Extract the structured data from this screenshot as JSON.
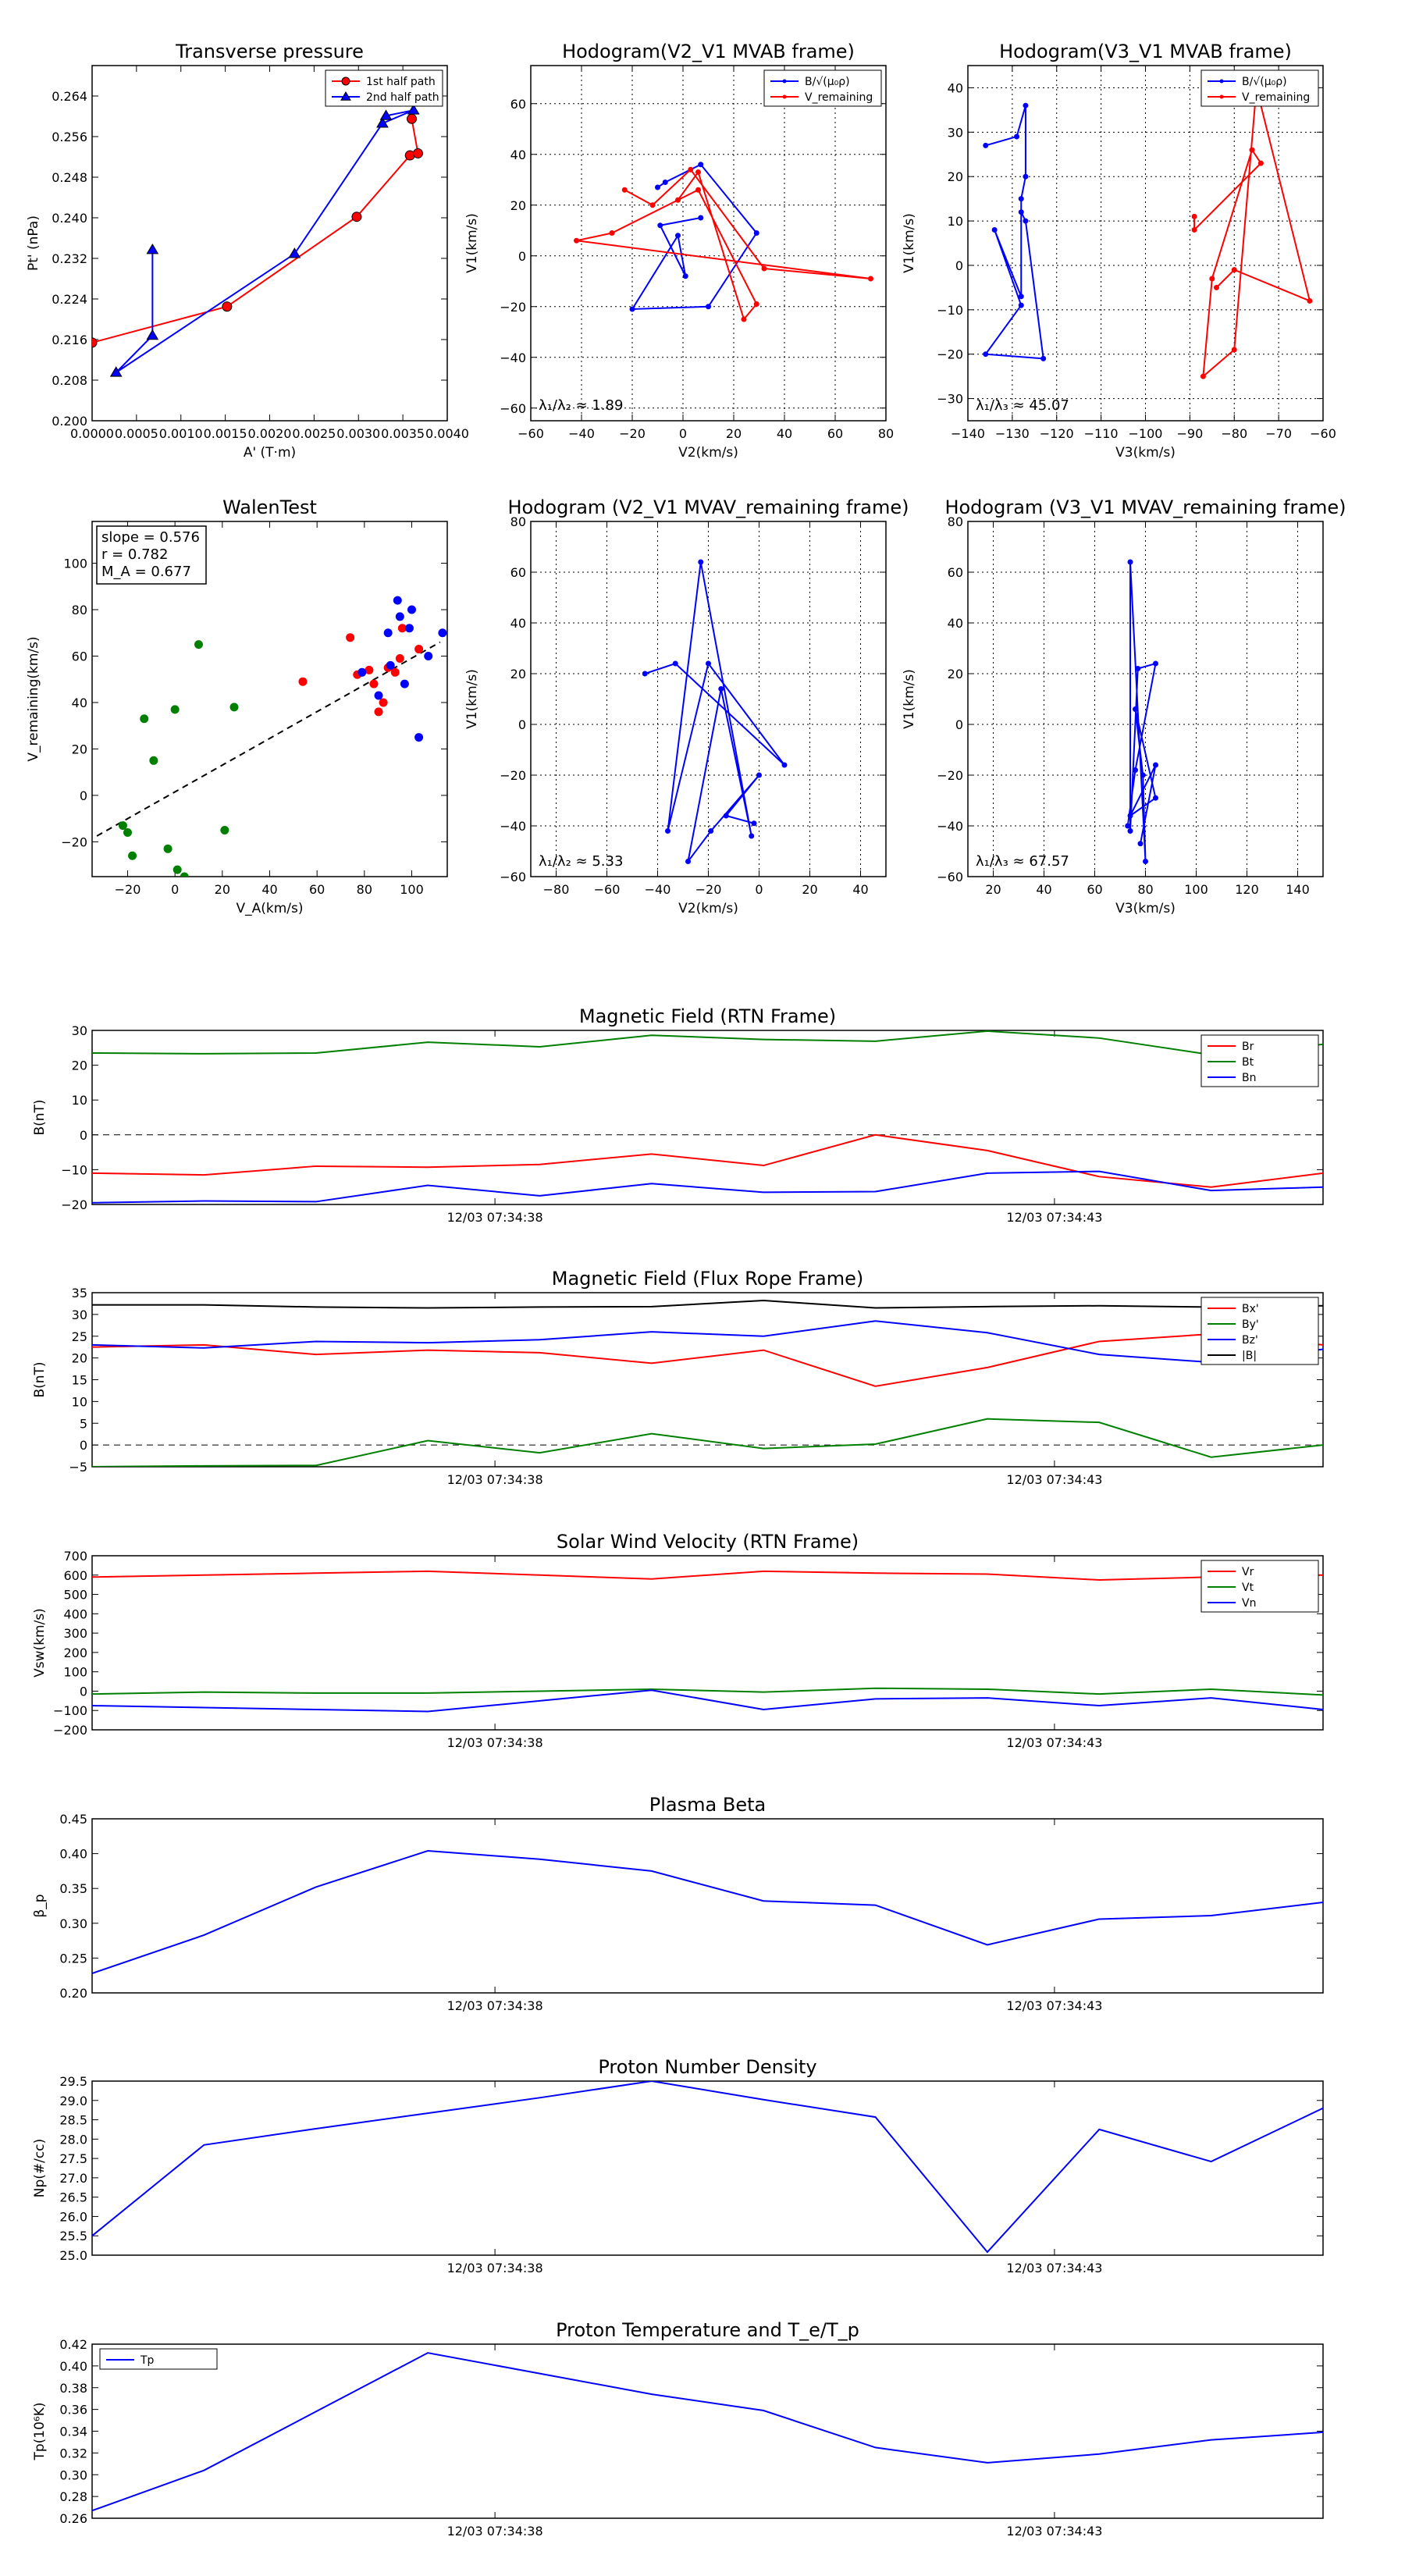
{
  "chart_data": [
    {
      "id": "transverse-pressure",
      "type": "line",
      "title": "Transverse pressure",
      "xlabel": "A' (T·m)",
      "ylabel": "Pt' (nPa)",
      "xlim": [
        0.0,
        0.004
      ],
      "ylim": [
        0.2,
        0.27
      ],
      "xticks": [
        0.0,
        0.0005,
        0.001,
        0.0015,
        0.002,
        0.0025,
        0.003,
        0.0035,
        0.004
      ],
      "xtick_labels": [
        "0.0000",
        "0.0005",
        "0.0010",
        "0.0015",
        "0.0020",
        "0.0025",
        "0.0030",
        "0.0035",
        "0.0040"
      ],
      "yticks": [
        0.2,
        0.208,
        0.216,
        0.224,
        0.232,
        0.24,
        0.248,
        0.256,
        0.264
      ],
      "ytick_labels": [
        "0.200",
        "0.208",
        "0.216",
        "0.224",
        "0.232",
        "0.240",
        "0.248",
        "0.256",
        "0.264"
      ],
      "grid": false,
      "legend": "top-right",
      "series": [
        {
          "name": "1st half path",
          "color": "#ff0000",
          "marker": "circle",
          "x": [
            0.0,
            0.00152,
            0.00298,
            0.00358,
            0.00367,
            0.0036
          ],
          "y": [
            0.2154,
            0.2225,
            0.2402,
            0.2523,
            0.2527,
            0.2595
          ]
        },
        {
          "name": "2nd half path",
          "color": "#0000ff",
          "marker": "triangle",
          "x": [
            0.00068,
            0.00068,
            0.00027,
            0.00228,
            0.00327,
            0.00362,
            0.00331
          ],
          "y": [
            0.2337,
            0.2168,
            0.2095,
            0.2329,
            0.2586,
            0.2612,
            0.2601
          ]
        }
      ]
    },
    {
      "id": "hodogram-v2-v1-mvab",
      "type": "line",
      "title": "Hodogram(V2_V1 MVAB frame)",
      "xlabel": "V2(km/s)",
      "ylabel": "V1(km/s)",
      "xlim": [
        -60,
        80
      ],
      "ylim": [
        -65,
        75
      ],
      "xticks": [
        -60,
        -40,
        -20,
        0,
        20,
        40,
        60,
        80
      ],
      "yticks": [
        -60,
        -40,
        -20,
        0,
        20,
        40,
        60
      ],
      "grid": true,
      "legend": "top-right",
      "annotation": "λ₁/λ₂ ≈ 1.89",
      "series": [
        {
          "name": "B/√(μ₀ρ)",
          "color": "#0000ff",
          "x": [
            -10,
            -7,
            7,
            29,
            10,
            -20,
            -2,
            1,
            -9,
            7
          ],
          "y": [
            27,
            29,
            36,
            9,
            -20,
            -21,
            8,
            -8,
            12,
            15
          ]
        },
        {
          "name": "V_remaining",
          "color": "#ff0000",
          "x": [
            -23,
            -12,
            3,
            32,
            74,
            -42,
            -28,
            6,
            29,
            24,
            6,
            -2
          ],
          "y": [
            26,
            20,
            34,
            -5,
            -9,
            6,
            9,
            26,
            -19,
            -25,
            33,
            22
          ]
        }
      ]
    },
    {
      "id": "hodogram-v3-v1-mvab",
      "type": "line",
      "title": "Hodogram(V3_V1 MVAB frame)",
      "xlabel": "V3(km/s)",
      "ylabel": "V1(km/s)",
      "xlim": [
        -140,
        -60
      ],
      "ylim": [
        -35,
        45
      ],
      "xticks": [
        -140,
        -130,
        -120,
        -110,
        -100,
        -90,
        -80,
        -70,
        -60
      ],
      "yticks": [
        -30,
        -20,
        -10,
        0,
        10,
        20,
        30,
        40
      ],
      "grid": true,
      "legend": "top-right",
      "annotation": "λ₁/λ₃ ≈ 45.07",
      "series": [
        {
          "name": "B/√(μ₀ρ)",
          "color": "#0000ff",
          "x": [
            -136,
            -129,
            -127,
            -127,
            -128,
            -128,
            -134,
            -128,
            -136,
            -123,
            -127,
            -128
          ],
          "y": [
            27,
            29,
            36,
            20,
            15,
            -7,
            8,
            -9,
            -20,
            -21,
            10,
            12
          ]
        },
        {
          "name": "V_remaining",
          "color": "#ff0000",
          "x": [
            -89,
            -89,
            -74,
            -76,
            -85,
            -87,
            -80,
            -75,
            -63,
            -80,
            -84
          ],
          "y": [
            11,
            8,
            23,
            26,
            -3,
            -25,
            -19,
            40,
            -8,
            -1,
            -5
          ]
        }
      ]
    },
    {
      "id": "walen-test",
      "type": "scatter",
      "title": "WalenTest",
      "xlabel": "V_A(km/s)",
      "ylabel": "V_remaining(km/s)",
      "xlim": [
        -35,
        115
      ],
      "ylim": [
        -35,
        118
      ],
      "xticks": [
        -20,
        0,
        20,
        40,
        60,
        80,
        100
      ],
      "yticks": [
        -20,
        0,
        20,
        40,
        60,
        80,
        100
      ],
      "grid": false,
      "annotation_lines": [
        "slope = 0.576",
        "r = 0.782",
        "M_A = 0.677"
      ],
      "fit_line": {
        "slope": 0.576,
        "intercept": 1.5,
        "x_range": [
          -33,
          112
        ],
        "color": "#000000",
        "style": "dashed"
      },
      "series": [
        {
          "name": "green",
          "color": "#008000",
          "x": [
            -22,
            -20,
            -18,
            -13,
            -9,
            -3,
            0,
            1,
            4,
            10,
            21,
            25
          ],
          "y": [
            -13,
            -16,
            -26,
            33,
            15,
            -23,
            37,
            -32,
            -35,
            65,
            -15,
            38
          ]
        },
        {
          "name": "red",
          "color": "#ff0000",
          "x": [
            54,
            74,
            77,
            82,
            84,
            86,
            88,
            90,
            93,
            95,
            96,
            103
          ],
          "y": [
            49,
            68,
            52,
            54,
            48,
            36,
            40,
            55,
            53,
            59,
            72,
            63
          ]
        },
        {
          "name": "blue",
          "color": "#0000ff",
          "x": [
            79,
            86,
            90,
            91,
            94,
            95,
            97,
            99,
            100,
            103,
            107,
            113
          ],
          "y": [
            53,
            43,
            70,
            56,
            84,
            77,
            48,
            72,
            80,
            25,
            60,
            70
          ]
        }
      ]
    },
    {
      "id": "hodogram-v2-v1-mvav",
      "type": "line",
      "title": "Hodogram (V2_V1 MVAV_remaining frame)",
      "xlabel": "V2(km/s)",
      "ylabel": "V1(km/s)",
      "xlim": [
        -90,
        50
      ],
      "ylim": [
        -60,
        80
      ],
      "xticks": [
        -80,
        -60,
        -40,
        -20,
        0,
        20,
        40
      ],
      "yticks": [
        -60,
        -40,
        -20,
        0,
        20,
        40,
        60,
        80
      ],
      "grid": true,
      "annotation": "λ₁/λ₂ ≈ 5.33",
      "series": [
        {
          "name": "",
          "color": "#0000ff",
          "x": [
            -45,
            -33,
            10,
            -20,
            -36,
            -23,
            -3,
            -15,
            -28,
            -19,
            0,
            -13,
            -2
          ],
          "y": [
            20,
            24,
            -16,
            24,
            -42,
            64,
            -44,
            14,
            -54,
            -42,
            -20,
            -36,
            -39
          ]
        }
      ]
    },
    {
      "id": "hodogram-v3-v1-mvav",
      "type": "line",
      "title": "Hodogram (V3_V1 MVAV_remaining frame)",
      "xlabel": "V3(km/s)",
      "ylabel": "V1(km/s)",
      "xlim": [
        10,
        150
      ],
      "ylim": [
        -60,
        80
      ],
      "xticks": [
        20,
        40,
        60,
        80,
        100,
        120,
        140
      ],
      "yticks": [
        -60,
        -40,
        -20,
        0,
        20,
        40,
        60,
        80
      ],
      "grid": true,
      "annotation": "λ₁/λ₃ ≈ 67.57",
      "series": [
        {
          "name": "",
          "color": "#0000ff",
          "x": [
            73,
            76,
            84,
            77,
            74,
            74,
            80,
            79,
            76,
            84,
            74,
            84,
            78
          ],
          "y": [
            -40,
            -18,
            24,
            22,
            -42,
            64,
            -54,
            -20,
            6,
            -29,
            -36,
            -16,
            -47
          ]
        }
      ]
    },
    {
      "id": "magnetic-field-rtn",
      "type": "line",
      "title": "Magnetic Field (RTN Frame)",
      "ylabel": "B(nT)",
      "ylim": [
        -20,
        30
      ],
      "yticks": [
        -20,
        -10,
        0,
        10,
        20,
        30
      ],
      "xlim": [
        0,
        11
      ],
      "time_ticks": [
        {
          "x": 3.6,
          "label": "12/03 07:34:38"
        },
        {
          "x": 8.6,
          "label": "12/03 07:34:43"
        }
      ],
      "zero_line": true,
      "legend": "top-right",
      "series": [
        {
          "name": "Br",
          "color": "#ff0000",
          "values": [
            -11,
            -11.5,
            -9,
            -9.3,
            -8.5,
            -5.5,
            -8.8,
            0,
            -4.5,
            -12,
            -15,
            -11
          ]
        },
        {
          "name": "Bt",
          "color": "#008000",
          "values": [
            23.5,
            23.3,
            23.5,
            26.6,
            25.3,
            28.6,
            27.4,
            26.9,
            29.8,
            27.8,
            23,
            26
          ]
        },
        {
          "name": "Bn",
          "color": "#0000ff",
          "values": [
            -19.5,
            -19,
            -19.2,
            -14.5,
            -17.5,
            -14,
            -16.5,
            -16.3,
            -11,
            -10.5,
            -16,
            -15
          ]
        }
      ]
    },
    {
      "id": "magnetic-field-flux-rope",
      "type": "line",
      "title": "Magnetic Field (Flux Rope Frame)",
      "ylabel": "B(nT)",
      "ylim": [
        -5,
        35
      ],
      "yticks": [
        -5,
        0,
        5,
        10,
        15,
        20,
        25,
        30,
        35
      ],
      "xlim": [
        0,
        11
      ],
      "time_ticks": [
        {
          "x": 3.6,
          "label": "12/03 07:34:38"
        },
        {
          "x": 8.6,
          "label": "12/03 07:34:43"
        }
      ],
      "zero_line": true,
      "legend": "top-right",
      "series": [
        {
          "name": "Bx'",
          "color": "#ff0000",
          "values": [
            22.5,
            23,
            20.8,
            21.8,
            21.2,
            18.8,
            21.8,
            13.5,
            17.8,
            23.8,
            25.5,
            23
          ]
        },
        {
          "name": "By'",
          "color": "#008000",
          "values": [
            -5,
            -4.8,
            -4.7,
            1,
            -1.8,
            2.6,
            -0.8,
            0.2,
            6,
            5.2,
            -2.8,
            0
          ]
        },
        {
          "name": "Bz'",
          "color": "#0000ff",
          "values": [
            23,
            22.3,
            23.8,
            23.5,
            24.2,
            26,
            25,
            28.5,
            25.8,
            20.8,
            19,
            22
          ]
        },
        {
          "name": "|B|",
          "color": "#000000",
          "values": [
            32.2,
            32.2,
            31.7,
            31.5,
            31.7,
            31.8,
            33.2,
            31.5,
            31.8,
            32,
            31.7,
            32
          ]
        }
      ]
    },
    {
      "id": "solar-wind-velocity",
      "type": "line",
      "title": "Solar Wind Velocity (RTN Frame)",
      "ylabel": "Vsw(km/s)",
      "ylim": [
        -200,
        700
      ],
      "yticks": [
        -200,
        -100,
        0,
        100,
        200,
        300,
        400,
        500,
        600,
        700
      ],
      "xlim": [
        0,
        11
      ],
      "time_ticks": [
        {
          "x": 3.6,
          "label": "12/03 07:34:38"
        },
        {
          "x": 8.6,
          "label": "12/03 07:34:43"
        }
      ],
      "legend": "top-right",
      "series": [
        {
          "name": "Vr",
          "color": "#ff0000",
          "values": [
            590,
            600,
            610,
            620,
            600,
            580,
            620,
            610,
            605,
            575,
            590,
            600
          ]
        },
        {
          "name": "Vt",
          "color": "#008000",
          "values": [
            -15,
            -5,
            -10,
            -10,
            0,
            10,
            -5,
            15,
            10,
            -15,
            10,
            -20
          ]
        },
        {
          "name": "Vn",
          "color": "#0000ff",
          "values": [
            -75,
            -85,
            -95,
            -105,
            -50,
            5,
            -95,
            -40,
            -35,
            -75,
            -35,
            -95
          ]
        }
      ]
    },
    {
      "id": "plasma-beta",
      "type": "line",
      "title": "Plasma Beta",
      "ylabel": "β_p",
      "ylim": [
        0.2,
        0.45
      ],
      "yticks": [
        0.2,
        0.25,
        0.3,
        0.35,
        0.4,
        0.45
      ],
      "ytick_labels": [
        "0.20",
        "0.25",
        "0.30",
        "0.35",
        "0.40",
        "0.45"
      ],
      "xlim": [
        0,
        11
      ],
      "time_ticks": [
        {
          "x": 3.6,
          "label": "12/03 07:34:38"
        },
        {
          "x": 8.6,
          "label": "12/03 07:34:43"
        }
      ],
      "series": [
        {
          "name": "",
          "color": "#0000ff",
          "values": [
            0.228,
            0.283,
            0.352,
            0.404,
            0.392,
            0.375,
            0.332,
            0.326,
            0.269,
            0.306,
            0.311,
            0.33
          ]
        }
      ]
    },
    {
      "id": "proton-number-density",
      "type": "line",
      "title": "Proton Number Density",
      "ylabel": "Np(#/cc)",
      "ylim": [
        25.0,
        29.5
      ],
      "yticks": [
        25.0,
        25.5,
        26.0,
        26.5,
        27.0,
        27.5,
        28.0,
        28.5,
        29.0,
        29.5
      ],
      "ytick_labels": [
        "25.0",
        "25.5",
        "26.0",
        "26.5",
        "27.0",
        "27.5",
        "28.0",
        "28.5",
        "29.0",
        "29.5"
      ],
      "xlim": [
        0,
        11
      ],
      "time_ticks": [
        {
          "x": 3.6,
          "label": "12/03 07:34:38"
        },
        {
          "x": 8.6,
          "label": "12/03 07:34:43"
        }
      ],
      "series": [
        {
          "name": "",
          "color": "#0000ff",
          "values": [
            25.5,
            27.85,
            28.27,
            28.67,
            29.07,
            29.5,
            29.02,
            28.57,
            25.08,
            28.25,
            27.42,
            28.8
          ]
        }
      ]
    },
    {
      "id": "proton-temperature",
      "type": "line",
      "title": "Proton Temperature and T_e/T_p",
      "ylabel": "Tp(10⁶K)",
      "ylim": [
        0.26,
        0.42
      ],
      "yticks": [
        0.26,
        0.28,
        0.3,
        0.32,
        0.34,
        0.36,
        0.38,
        0.4,
        0.42
      ],
      "ytick_labels": [
        "0.26",
        "0.28",
        "0.30",
        "0.32",
        "0.34",
        "0.36",
        "0.38",
        "0.40",
        "0.42"
      ],
      "xlim": [
        0,
        11
      ],
      "time_ticks": [
        {
          "x": 3.6,
          "label": "12/03 07:34:38"
        },
        {
          "x": 8.6,
          "label": "12/03 07:34:43"
        }
      ],
      "legend": "top-left",
      "series": [
        {
          "name": "Tp",
          "color": "#0000ff",
          "values": [
            0.267,
            0.304,
            0.358,
            0.412,
            0.393,
            0.374,
            0.359,
            0.325,
            0.311,
            0.319,
            0.332,
            0.339
          ]
        }
      ]
    }
  ]
}
